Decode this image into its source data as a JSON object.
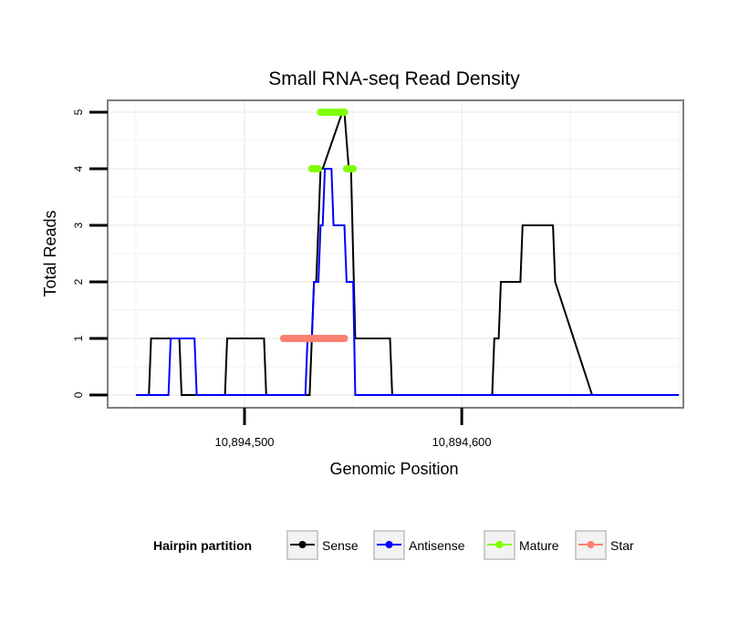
{
  "chart_data": {
    "type": "line",
    "title": "Small RNA-seq Read Density",
    "xlabel": "Genomic Position",
    "ylabel": "Total Reads",
    "xlim": [
      10894437,
      10894702
    ],
    "ylim": [
      0,
      5
    ],
    "x_ticks": [
      10894500,
      10894600
    ],
    "x_tick_labels": [
      "10,894,500",
      "10,894,600"
    ],
    "y_ticks": [
      0,
      1,
      2,
      3,
      4,
      5
    ],
    "y_tick_labels": [
      "0",
      "1",
      "2",
      "3",
      "4",
      "5"
    ],
    "legend_title": "Hairpin partition",
    "legend_position": "bottom",
    "series": [
      {
        "name": "Sense",
        "color": "#000000",
        "style": "line",
        "x": [
          10894450,
          10894456,
          10894457,
          10894470,
          10894471,
          10894476,
          10894477,
          10894491,
          10894492,
          10894509,
          10894510,
          10894530,
          10894532,
          10894533,
          10894535,
          10894536,
          10894545,
          10894546,
          10894548,
          10894549,
          10894551,
          10894567,
          10894568,
          10894587,
          10894588,
          10894598,
          10894599,
          10894610,
          10894611,
          10894614,
          10894615,
          10894617,
          10894618,
          10894627,
          10894628,
          10894642,
          10894643,
          10894660
        ],
        "y": [
          0,
          0,
          1,
          1,
          0,
          0,
          0,
          0,
          1,
          1,
          0,
          0,
          2,
          2,
          4,
          4,
          5,
          5,
          4,
          4,
          1,
          1,
          0,
          0,
          0,
          0,
          0,
          0,
          0,
          0,
          1,
          1,
          2,
          2,
          3,
          3,
          2,
          0
        ]
      },
      {
        "name": "Antisense",
        "color": "#0000ff",
        "style": "line",
        "x": [
          10894450,
          10894464,
          10894465,
          10894466,
          10894467,
          10894477,
          10894478,
          10894508,
          10894509,
          10894523,
          10894524,
          10894528,
          10894529,
          10894531,
          10894532,
          10894534,
          10894535,
          10894536,
          10894537,
          10894540,
          10894541,
          10894546,
          10894547,
          10894550,
          10894551,
          10894700
        ],
        "y": [
          0,
          0,
          0,
          1,
          1,
          1,
          0,
          0,
          0,
          0,
          0,
          0,
          1,
          1,
          2,
          2,
          3,
          3,
          4,
          4,
          3,
          3,
          2,
          2,
          0,
          0
        ]
      },
      {
        "name": "Mature",
        "color": "#7fff00",
        "style": "points",
        "x": [
          10894531,
          10894532,
          10894533,
          10894534,
          10894535,
          10894536,
          10894537,
          10894538,
          10894539,
          10894540,
          10894541,
          10894542,
          10894543,
          10894544,
          10894545,
          10894546,
          10894547,
          10894548,
          10894549,
          10894550
        ],
        "y": [
          4,
          4,
          4,
          4,
          5,
          5,
          5,
          5,
          5,
          5,
          5,
          5,
          5,
          5,
          5,
          5,
          4,
          4,
          4,
          4
        ]
      },
      {
        "name": "Star",
        "color": "#fa8072",
        "style": "points",
        "x": [
          10894518,
          10894519,
          10894520,
          10894521,
          10894522,
          10894523,
          10894524,
          10894525,
          10894526,
          10894527,
          10894528,
          10894529,
          10894530,
          10894531,
          10894532,
          10894533,
          10894534,
          10894535,
          10894536,
          10894537,
          10894538,
          10894539,
          10894540,
          10894541,
          10894542,
          10894543,
          10894544,
          10894545,
          10894546
        ],
        "y": [
          1,
          1,
          1,
          1,
          1,
          1,
          1,
          1,
          1,
          1,
          1,
          1,
          1,
          1,
          1,
          1,
          1,
          1,
          1,
          1,
          1,
          1,
          1,
          1,
          1,
          1,
          1,
          1,
          1
        ]
      }
    ]
  }
}
